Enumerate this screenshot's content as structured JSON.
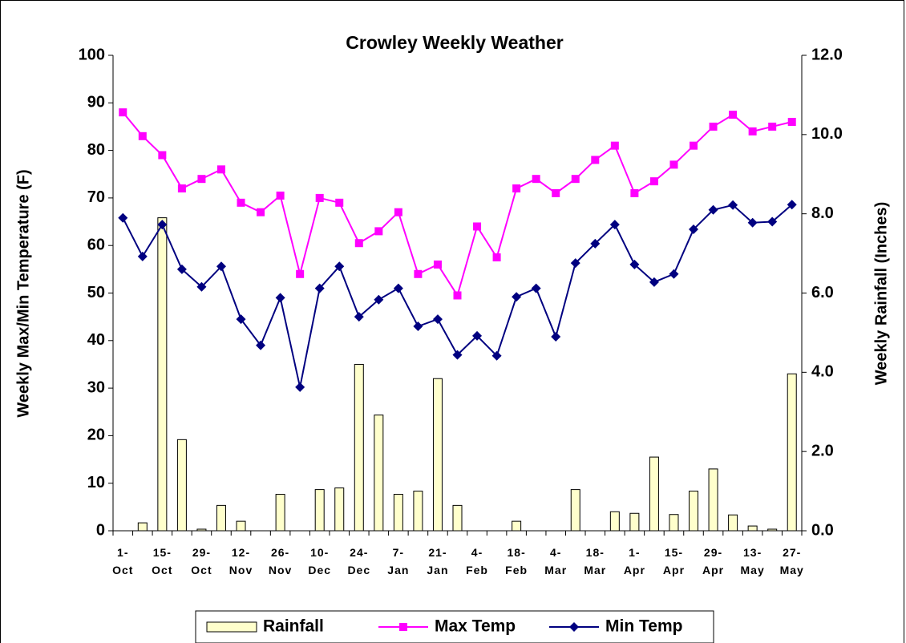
{
  "chart_data": {
    "type": "bar_line",
    "title": "Crowley Weekly Weather",
    "ylabel": "Weekly Max/Min Temperature (F)",
    "y2label": "Weekly Rainfall (Inches)",
    "categories": [
      "1- Oct",
      null,
      "15- Oct",
      null,
      "29- Oct",
      null,
      "12- Nov",
      null,
      "26- Nov",
      null,
      "10- Dec",
      null,
      "24- Dec",
      null,
      "7- Jan",
      null,
      "21- Jan",
      null,
      "4- Feb",
      null,
      "18- Feb",
      null,
      "4- Mar",
      null,
      "18- Mar",
      null,
      "1- Apr",
      null,
      "15- Apr",
      null,
      "29- Apr",
      null,
      "13- May",
      null,
      "27- May"
    ],
    "ylim": [
      0,
      100
    ],
    "yticks": [
      0,
      10,
      20,
      30,
      40,
      50,
      60,
      70,
      80,
      90,
      100
    ],
    "y2lim": [
      0,
      12
    ],
    "y2ticks": [
      {
        "value": 0,
        "label": "0.0"
      },
      {
        "value": 2,
        "label": "2.0"
      },
      {
        "value": 4,
        "label": "4.0"
      },
      {
        "value": 6,
        "label": "6.0"
      },
      {
        "value": 8,
        "label": "8.0"
      },
      {
        "value": 10,
        "label": "10.0"
      },
      {
        "value": 12,
        "label": "12.0"
      }
    ],
    "legend": "bottom",
    "series": [
      {
        "name": "Rainfall",
        "kind": "bar",
        "axis": "y2",
        "color": "#ffffcc",
        "values": [
          0,
          0.2,
          7.9,
          2.3,
          0.04,
          0.64,
          0.24,
          0,
          0.92,
          0,
          1.04,
          1.08,
          4.2,
          2.92,
          0.92,
          1.0,
          3.84,
          0.64,
          0,
          0,
          0.24,
          0,
          0,
          1.04,
          0,
          0.48,
          0.44,
          1.86,
          0.41,
          1.0,
          1.56,
          0.4,
          0.12,
          0.04,
          3.96
        ]
      },
      {
        "name": "Max Temp",
        "kind": "line",
        "marker": "square",
        "color": "#ff00ff",
        "values": [
          88,
          83,
          79,
          72,
          74,
          76,
          69,
          67,
          70.5,
          54,
          70,
          69,
          60.5,
          63,
          67,
          54,
          56,
          49.5,
          64,
          57.5,
          72,
          74,
          71,
          74,
          78,
          81,
          71,
          73.5,
          77,
          81,
          85,
          87.5,
          84,
          85,
          86
        ]
      },
      {
        "name": "Min Temp",
        "kind": "line",
        "marker": "diamond",
        "color": "#000080",
        "values": [
          65.8,
          57.7,
          64.4,
          55,
          51.3,
          55.6,
          44.5,
          39,
          49,
          30.2,
          51,
          55.6,
          45,
          48.6,
          51,
          43,
          44.5,
          37,
          41,
          36.8,
          49.2,
          51,
          40.8,
          56.3,
          60.4,
          64.4,
          56,
          52.3,
          54,
          63.4,
          67.5,
          68.5,
          64.8,
          65,
          68.6
        ]
      }
    ]
  }
}
